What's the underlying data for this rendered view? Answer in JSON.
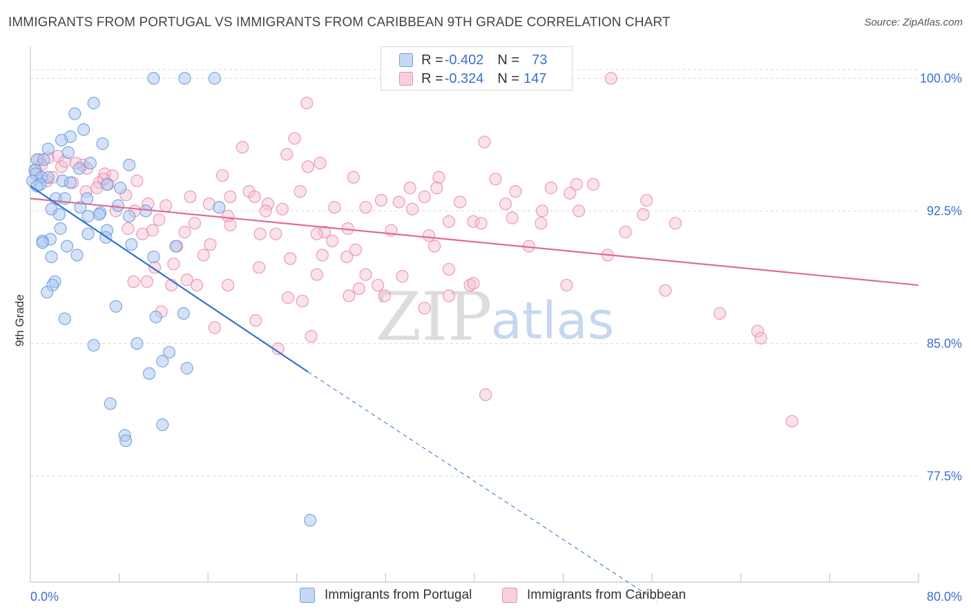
{
  "title": "IMMIGRANTS FROM PORTUGAL VS IMMIGRANTS FROM CARIBBEAN 9TH GRADE CORRELATION CHART",
  "source": "Source: ZipAtlas.com",
  "watermark": {
    "zip": "ZIP",
    "atlas": "atlas"
  },
  "legend": {
    "rows": [
      {
        "r_label": "R = ",
        "r_value": "-0.402",
        "n_label": "N = ",
        "n_value": "73"
      },
      {
        "r_label": "R = ",
        "r_value": "-0.324",
        "n_label": "N = ",
        "n_value": "147"
      }
    ]
  },
  "bottom_legend": [
    "Immigrants from Portugal",
    "Immigrants from Caribbean"
  ],
  "colors": {
    "blue_fill": "#a9c6ef",
    "blue_stroke": "#6f9ee0",
    "blue_line": "#2f6fd2",
    "pink_fill": "#f5bfd0",
    "pink_stroke": "#e98aab",
    "pink_line": "#e06a95",
    "tick_label": "#3a6fd0",
    "grid": "#d9d9d9"
  },
  "chart_data": {
    "type": "scatter",
    "title": "IMMIGRANTS FROM PORTUGAL VS IMMIGRANTS FROM CARIBBEAN 9TH GRADE CORRELATION CHART",
    "xlabel": "",
    "ylabel": "9th Grade",
    "xlim": [
      0,
      80
    ],
    "ylim": [
      71.5,
      101.5
    ],
    "x_tick_labels": [
      "0.0%",
      "80.0%"
    ],
    "y_ticks": [
      77.5,
      85.0,
      92.5,
      100.0
    ],
    "y_tick_labels": [
      "77.5%",
      "85.0%",
      "92.5%",
      "100.0%"
    ],
    "series": [
      {
        "name": "Immigrants from Portugal",
        "r": -0.402,
        "n": 73,
        "trend": {
          "x0": 0,
          "y0": 93.9,
          "x1": 25,
          "y1": 83.4,
          "dash_x1": 56.5,
          "dash_y1": 70.4
        },
        "points": [
          [
            11.1,
            100
          ],
          [
            13.9,
            100
          ],
          [
            16.6,
            100
          ],
          [
            5.7,
            98.6
          ],
          [
            4.0,
            98.0
          ],
          [
            4.8,
            97.1
          ],
          [
            3.6,
            96.7
          ],
          [
            2.8,
            96.5
          ],
          [
            6.5,
            96.3
          ],
          [
            1.6,
            96.0
          ],
          [
            3.4,
            95.8
          ],
          [
            0.6,
            95.4
          ],
          [
            1.2,
            95.4
          ],
          [
            5.4,
            95.2
          ],
          [
            8.9,
            95.1
          ],
          [
            4.4,
            94.9
          ],
          [
            0.4,
            94.8
          ],
          [
            0.5,
            94.6
          ],
          [
            1.0,
            94.4
          ],
          [
            1.6,
            94.4
          ],
          [
            2.9,
            94.2
          ],
          [
            0.2,
            94.2
          ],
          [
            3.6,
            94.1
          ],
          [
            0.9,
            94.0
          ],
          [
            6.9,
            94.0
          ],
          [
            0.6,
            93.9
          ],
          [
            8.1,
            93.8
          ],
          [
            5.1,
            93.2
          ],
          [
            2.3,
            93.2
          ],
          [
            3.1,
            93.2
          ],
          [
            7.9,
            92.8
          ],
          [
            17.0,
            92.7
          ],
          [
            4.5,
            92.7
          ],
          [
            1.9,
            92.6
          ],
          [
            10.4,
            92.5
          ],
          [
            6.3,
            92.4
          ],
          [
            6.2,
            92.3
          ],
          [
            2.6,
            92.3
          ],
          [
            5.2,
            92.2
          ],
          [
            8.9,
            92.2
          ],
          [
            2.7,
            91.5
          ],
          [
            6.9,
            91.4
          ],
          [
            5.2,
            91.2
          ],
          [
            6.8,
            91.0
          ],
          [
            1.8,
            90.9
          ],
          [
            1.1,
            90.8
          ],
          [
            1.1,
            90.7
          ],
          [
            9.1,
            90.6
          ],
          [
            3.3,
            90.5
          ],
          [
            13.1,
            90.5
          ],
          [
            4.2,
            90.0
          ],
          [
            1.9,
            89.9
          ],
          [
            11.1,
            89.9
          ],
          [
            2.2,
            88.5
          ],
          [
            2.0,
            88.3
          ],
          [
            1.5,
            87.9
          ],
          [
            7.7,
            87.1
          ],
          [
            13.8,
            86.7
          ],
          [
            11.3,
            86.5
          ],
          [
            3.1,
            86.4
          ],
          [
            5.7,
            84.9
          ],
          [
            9.6,
            85.0
          ],
          [
            12.5,
            84.5
          ],
          [
            11.9,
            84.0
          ],
          [
            14.1,
            83.6
          ],
          [
            10.7,
            83.3
          ],
          [
            7.2,
            81.6
          ],
          [
            11.9,
            80.4
          ],
          [
            8.5,
            79.8
          ],
          [
            8.6,
            79.5
          ],
          [
            25.2,
            75.0
          ]
        ]
      },
      {
        "name": "Immigrants from Caribbean",
        "r": -0.324,
        "n": 147,
        "trend": {
          "x0": 0,
          "y0": 93.2,
          "x1": 80,
          "y1": 88.3
        },
        "points": [
          [
            52.3,
            100
          ],
          [
            24.9,
            98.6
          ],
          [
            40.9,
            96.4
          ],
          [
            23.8,
            96.6
          ],
          [
            19.1,
            96.1
          ],
          [
            23.1,
            95.7
          ],
          [
            26.1,
            95.2
          ],
          [
            25.0,
            95.0
          ],
          [
            2.5,
            95.6
          ],
          [
            1.6,
            95.5
          ],
          [
            0.8,
            95.4
          ],
          [
            1.0,
            95.1
          ],
          [
            2.8,
            95.0
          ],
          [
            4.7,
            95.1
          ],
          [
            5.1,
            94.9
          ],
          [
            0.5,
            94.8
          ],
          [
            6.7,
            94.6
          ],
          [
            17.3,
            94.5
          ],
          [
            7.4,
            94.5
          ],
          [
            29.1,
            94.4
          ],
          [
            36.8,
            94.4
          ],
          [
            41.9,
            94.3
          ],
          [
            1.5,
            94.2
          ],
          [
            3.8,
            94.1
          ],
          [
            9.6,
            94.2
          ],
          [
            6.2,
            94.1
          ],
          [
            7.0,
            94.0
          ],
          [
            6.0,
            93.8
          ],
          [
            34.2,
            93.8
          ],
          [
            36.6,
            93.8
          ],
          [
            49.2,
            94.0
          ],
          [
            50.7,
            94.0
          ],
          [
            46.9,
            93.8
          ],
          [
            48.6,
            93.5
          ],
          [
            43.7,
            93.6
          ],
          [
            5.0,
            93.6
          ],
          [
            8.6,
            93.4
          ],
          [
            19.7,
            93.6
          ],
          [
            24.3,
            93.6
          ],
          [
            14.4,
            93.3
          ],
          [
            18.0,
            93.3
          ],
          [
            35.5,
            93.3
          ],
          [
            20.2,
            93.3
          ],
          [
            31.6,
            93.1
          ],
          [
            33.2,
            93.0
          ],
          [
            38.7,
            93.0
          ],
          [
            42.8,
            92.9
          ],
          [
            55.5,
            93.1
          ],
          [
            10.6,
            92.9
          ],
          [
            16.1,
            92.9
          ],
          [
            21.4,
            92.9
          ],
          [
            27.4,
            92.7
          ],
          [
            30.2,
            92.7
          ],
          [
            12.2,
            92.8
          ],
          [
            22.7,
            92.6
          ],
          [
            21.2,
            92.5
          ],
          [
            34.4,
            92.6
          ],
          [
            9.4,
            92.5
          ],
          [
            7.7,
            92.5
          ],
          [
            46.1,
            92.5
          ],
          [
            49.4,
            92.5
          ],
          [
            17.8,
            92.2
          ],
          [
            55.2,
            92.3
          ],
          [
            11.6,
            92.0
          ],
          [
            39.9,
            91.9
          ],
          [
            40.6,
            91.8
          ],
          [
            43.4,
            92.1
          ],
          [
            37.7,
            91.9
          ],
          [
            46.0,
            91.8
          ],
          [
            58.1,
            91.8
          ],
          [
            14.8,
            91.8
          ],
          [
            18.0,
            91.7
          ],
          [
            8.8,
            91.5
          ],
          [
            28.6,
            91.5
          ],
          [
            32.5,
            91.4
          ],
          [
            11.0,
            91.4
          ],
          [
            13.9,
            91.3
          ],
          [
            26.5,
            91.3
          ],
          [
            53.6,
            91.3
          ],
          [
            10.1,
            91.2
          ],
          [
            20.7,
            91.2
          ],
          [
            22.1,
            91.2
          ],
          [
            25.8,
            91.2
          ],
          [
            35.9,
            91.1
          ],
          [
            16.2,
            90.6
          ],
          [
            13.2,
            90.5
          ],
          [
            44.9,
            90.5
          ],
          [
            27.2,
            90.8
          ],
          [
            36.4,
            90.5
          ],
          [
            29.3,
            90.3
          ],
          [
            15.6,
            90.0
          ],
          [
            26.3,
            90.0
          ],
          [
            28.5,
            89.9
          ],
          [
            52.0,
            90.0
          ],
          [
            23.4,
            89.8
          ],
          [
            12.9,
            89.5
          ],
          [
            11.2,
            89.3
          ],
          [
            20.6,
            89.3
          ],
          [
            37.7,
            89.2
          ],
          [
            25.8,
            88.9
          ],
          [
            30.2,
            88.9
          ],
          [
            33.5,
            88.8
          ],
          [
            14.1,
            88.6
          ],
          [
            9.3,
            88.5
          ],
          [
            10.5,
            88.5
          ],
          [
            12.7,
            88.3
          ],
          [
            15.0,
            88.3
          ],
          [
            17.8,
            88.3
          ],
          [
            31.3,
            88.3
          ],
          [
            29.6,
            88.1
          ],
          [
            28.7,
            87.7
          ],
          [
            39.6,
            88.3
          ],
          [
            39.9,
            88.4
          ],
          [
            48.3,
            88.3
          ],
          [
            31.9,
            87.7
          ],
          [
            57.2,
            88.0
          ],
          [
            23.2,
            87.6
          ],
          [
            24.5,
            87.4
          ],
          [
            37.7,
            87.7
          ],
          [
            11.8,
            86.8
          ],
          [
            35.5,
            87.0
          ],
          [
            20.3,
            86.3
          ],
          [
            16.6,
            85.9
          ],
          [
            62.1,
            86.7
          ],
          [
            65.5,
            85.7
          ],
          [
            65.8,
            85.3
          ],
          [
            25.3,
            85.4
          ],
          [
            22.3,
            84.7
          ],
          [
            41.0,
            82.1
          ],
          [
            68.6,
            80.6
          ],
          [
            2.0,
            94.4
          ],
          [
            6.6,
            94.3
          ],
          [
            4.1,
            95.2
          ],
          [
            3.1,
            95.3
          ]
        ]
      }
    ]
  }
}
